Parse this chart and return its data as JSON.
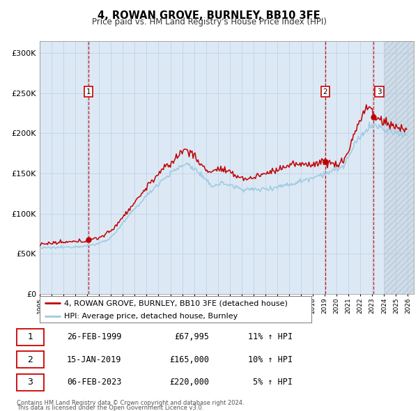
{
  "title": "4, ROWAN GROVE, BURNLEY, BB10 3FE",
  "subtitle": "Price paid vs. HM Land Registry's House Price Index (HPI)",
  "ylabel_ticks": [
    "£0",
    "£50K",
    "£100K",
    "£150K",
    "£200K",
    "£250K",
    "£300K"
  ],
  "ytick_vals": [
    0,
    50000,
    100000,
    150000,
    200000,
    250000,
    300000
  ],
  "ylim": [
    0,
    315000
  ],
  "sale_points": [
    {
      "label": "1",
      "date_num": 1999.12,
      "price": 67995
    },
    {
      "label": "2",
      "date_num": 2019.04,
      "price": 165000
    },
    {
      "label": "3",
      "date_num": 2023.09,
      "price": 220000
    }
  ],
  "vline_dates": [
    1999.12,
    2019.04,
    2023.09
  ],
  "table_rows": [
    [
      "1",
      "26-FEB-1999",
      "£67,995",
      "11% ↑ HPI"
    ],
    [
      "2",
      "15-JAN-2019",
      "£165,000",
      "10% ↑ HPI"
    ],
    [
      "3",
      "06-FEB-2023",
      "£220,000",
      "5% ↑ HPI"
    ]
  ],
  "legend_line1": "4, ROWAN GROVE, BURNLEY, BB10 3FE (detached house)",
  "legend_line2": "HPI: Average price, detached house, Burnley",
  "footer1": "Contains HM Land Registry data © Crown copyright and database right 2024.",
  "footer2": "This data is licensed under the Open Government Licence v3.0.",
  "hpi_color": "#9ecae1",
  "sale_color": "#c00000",
  "vline_color": "#c00000",
  "bg_color": "#ffffff",
  "plot_bg_color": "#dce9f5",
  "grid_color": "#b0c8e0",
  "hatch_color": "#c0d0e0"
}
